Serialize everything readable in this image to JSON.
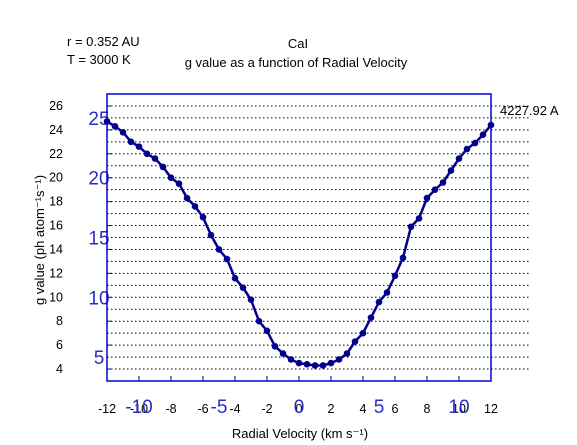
{
  "params": {
    "r_label": "r = 0.352 AU",
    "t_label": "T = 3000 K"
  },
  "chart_data": {
    "type": "line",
    "title": "CaI",
    "subtitle": "g value as a function of Radial Velocity",
    "xlabel": "Radial Velocity (km s⁻¹)",
    "ylabel": "g value (ph atom⁻¹s⁻¹)",
    "annotation": "4227.92 A",
    "xlim": [
      -12,
      12
    ],
    "ylim": [
      3,
      27
    ],
    "x_ticks": [
      -12,
      -10,
      -8,
      -6,
      -4,
      -2,
      0,
      2,
      4,
      6,
      8,
      10,
      12
    ],
    "y_ticks": [
      4,
      6,
      8,
      10,
      12,
      14,
      16,
      18,
      20,
      22,
      24,
      26
    ],
    "inner_x_ticks": [
      -10,
      -5,
      0,
      5,
      10
    ],
    "inner_y_ticks": [
      5,
      10,
      15,
      20,
      25
    ],
    "grid": {
      "horizontal_dotted": true,
      "y_step": 1
    },
    "colors": {
      "line": "#00008b",
      "frame": "#0000cd",
      "inner_ticks": "#2b2bc8"
    },
    "series": [
      {
        "x": [
          -12,
          -11.5,
          -11,
          -10.5,
          -10,
          -9.5,
          -9,
          -8.5,
          -8,
          -7.5,
          -7,
          -6.5,
          -6,
          -5.5,
          -5,
          -4.5,
          -4,
          -3.5,
          -3,
          -2.5,
          -2,
          -1.5,
          -1,
          -0.5,
          0,
          0.5,
          1,
          1.5,
          2,
          2.5,
          3,
          3.5,
          4,
          4.5,
          5,
          5.5,
          6,
          6.5,
          7,
          7.5,
          8,
          8.5,
          9,
          9.5,
          10,
          10.5,
          11,
          11.5,
          12
        ],
        "values": [
          24.7,
          24.3,
          23.8,
          23.0,
          22.6,
          22.0,
          21.6,
          20.9,
          20.0,
          19.5,
          18.3,
          17.6,
          16.7,
          15.2,
          14.0,
          13.2,
          11.6,
          10.8,
          9.8,
          8.0,
          7.2,
          5.9,
          5.3,
          4.8,
          4.5,
          4.4,
          4.3,
          4.3,
          4.5,
          4.8,
          5.3,
          6.3,
          7.0,
          8.3,
          9.6,
          10.4,
          11.8,
          13.3,
          15.9,
          16.6,
          18.3,
          19.0,
          19.6,
          20.6,
          21.6,
          22.4,
          22.9,
          23.6,
          24.4
        ]
      }
    ]
  }
}
